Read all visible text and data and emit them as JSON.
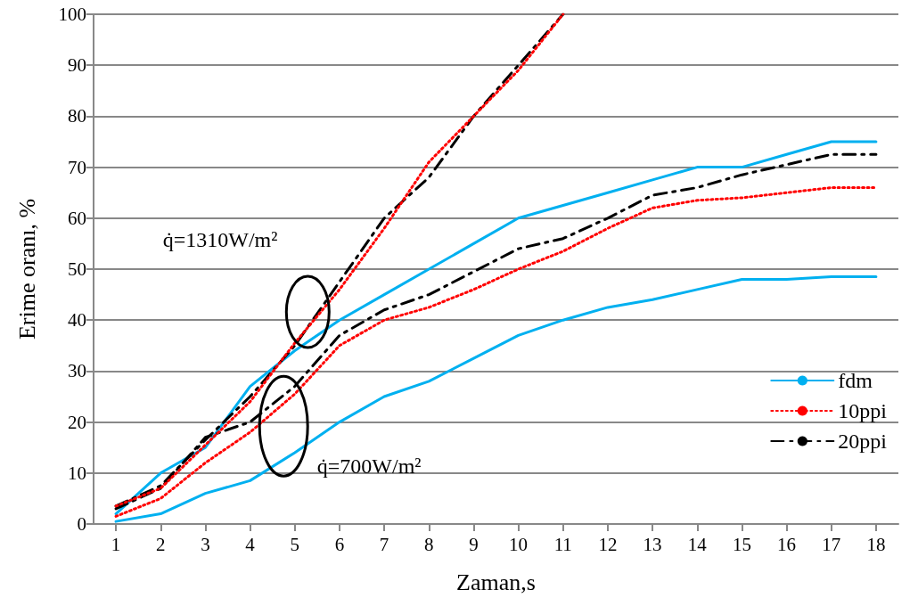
{
  "chart_data": {
    "type": "line",
    "xlabel": "Zaman,s",
    "ylabel": "Erime oranı, %",
    "x": [
      1,
      2,
      3,
      4,
      5,
      6,
      7,
      8,
      9,
      10,
      11,
      12,
      13,
      14,
      15,
      16,
      17,
      18
    ],
    "xlim": [
      0.5,
      18.5
    ],
    "xticks": [
      1,
      2,
      3,
      4,
      5,
      6,
      7,
      8,
      9,
      10,
      11,
      12,
      13,
      14,
      15,
      16,
      17,
      18
    ],
    "ylim": [
      0,
      100
    ],
    "yticks": [
      0,
      10,
      20,
      30,
      40,
      50,
      60,
      70,
      80,
      90,
      100
    ],
    "grid": "y",
    "legend": "right",
    "marker": "none",
    "series": [
      {
        "name": "fdm",
        "color": "#00b0f0",
        "line_style": "solid",
        "values": [
          2,
          10,
          15,
          27,
          34,
          40,
          45,
          50,
          55,
          60,
          62.5,
          65,
          67.5,
          70,
          70,
          72.5,
          75,
          75
        ]
      },
      {
        "name": "10ppi",
        "color": "#ff0000",
        "line_style": "dotted",
        "values": [
          1.5,
          5,
          12,
          18,
          25.5,
          35,
          40,
          42.5,
          46,
          50,
          53.5,
          58,
          62,
          63.5,
          64,
          65,
          66,
          66
        ]
      },
      {
        "name": "20ppi",
        "color": "#000000",
        "line_style": "dashdot",
        "values": [
          3,
          7,
          17,
          20,
          27,
          37,
          42,
          45,
          49.5,
          54,
          56,
          60,
          64.5,
          66,
          68.5,
          70.5,
          72.5,
          72.5
        ]
      },
      {
        "color": "#00b0f0",
        "line_style": "solid",
        "values": [
          0.5,
          2,
          6,
          8.5,
          14,
          20,
          25,
          28,
          32.5,
          37,
          40,
          42.5,
          44,
          46,
          48,
          48,
          48.5,
          48.5
        ]
      },
      {
        "color": "#ff0000",
        "line_style": "dotted",
        "values": [
          3.5,
          7,
          15.5,
          24,
          35.5,
          46,
          58,
          71,
          80,
          89,
          100,
          null,
          null,
          null,
          null,
          null,
          null,
          null
        ]
      },
      {
        "color": "#000000",
        "line_style": "dashdot",
        "values": [
          3.5,
          7.5,
          16.5,
          25,
          35,
          47.5,
          60,
          68,
          80,
          90,
          100,
          null,
          null,
          null,
          null,
          null,
          null,
          null
        ]
      }
    ],
    "annotations": [
      "q̇=1310W/m²",
      "q̇=700W/m²"
    ]
  }
}
